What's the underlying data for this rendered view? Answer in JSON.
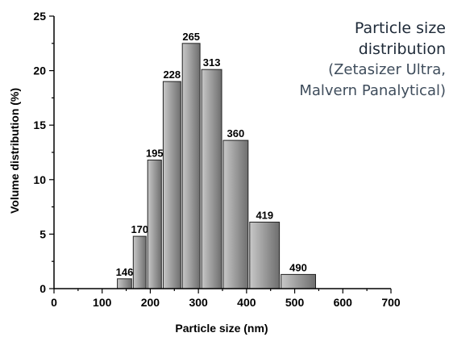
{
  "caption": {
    "line1": "Particle size",
    "line2": "distribution",
    "line3": "(Zetasizer Ultra,",
    "line4": "Malvern Panalytical)"
  },
  "colors": {
    "bar_fill_light": "#c8c8c8",
    "bar_fill_dark": "#6e6e6e",
    "bar_stroke": "#222222"
  },
  "chart_data": {
    "type": "bar",
    "xlabel": "Particle size (nm)",
    "ylabel": "Volume distribution (%)",
    "xlim": [
      0,
      700
    ],
    "ylim": [
      0,
      25
    ],
    "xticks": [
      0,
      100,
      200,
      300,
      400,
      500,
      600,
      700
    ],
    "yticks": [
      0,
      5,
      10,
      15,
      20,
      25
    ],
    "bars": [
      {
        "label": "146",
        "left": 130,
        "right": 163,
        "value": 0.9
      },
      {
        "label": "170",
        "left": 163,
        "right": 193,
        "value": 4.8
      },
      {
        "label": "195",
        "left": 193,
        "right": 225,
        "value": 11.8
      },
      {
        "label": "228",
        "left": 225,
        "right": 265,
        "value": 19.0
      },
      {
        "label": "265",
        "left": 265,
        "right": 305,
        "value": 22.5
      },
      {
        "label": "313",
        "left": 305,
        "right": 350,
        "value": 20.1
      },
      {
        "label": "360",
        "left": 350,
        "right": 405,
        "value": 13.6
      },
      {
        "label": "419",
        "left": 405,
        "right": 470,
        "value": 6.1
      },
      {
        "label": "490",
        "left": 470,
        "right": 545,
        "value": 1.3
      }
    ]
  }
}
